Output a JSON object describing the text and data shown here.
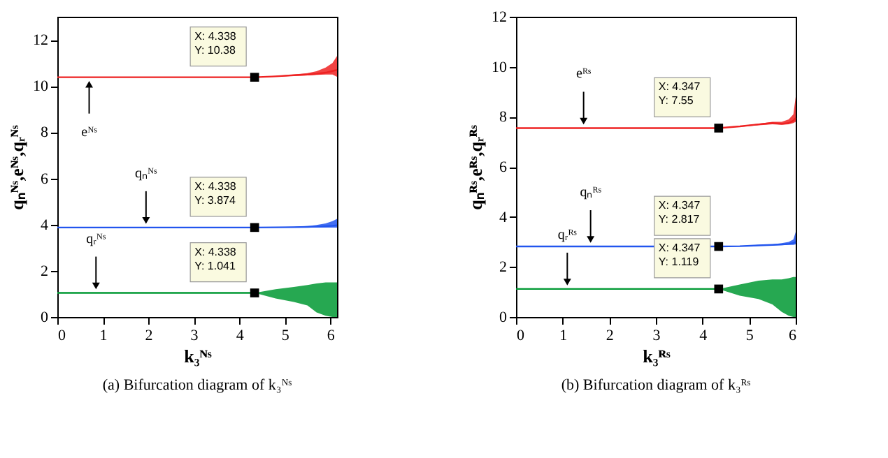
{
  "chart_data": [
    {
      "type": "line",
      "title": "(a) Bifurcation diagram of k₃ᴺˢ",
      "xlabel": "k₃ᴺˢ",
      "ylabel": "qₙᴺˢ,eᴺˢ,qᵣᴺˢ",
      "x": [
        0,
        4.338,
        4.8,
        5.2,
        5.5,
        5.7,
        5.9,
        6.05,
        6.15
      ],
      "series": [
        {
          "color": "#ee2222",
          "values": [
            10.38,
            10.38,
            10.42,
            10.47,
            10.5,
            10.53,
            10.58,
            10.65,
            10.7
          ],
          "lower": [
            10.38,
            10.38,
            10.4,
            10.44,
            10.46,
            10.48,
            10.5,
            10.5,
            10.4
          ],
          "upper": [
            10.38,
            10.38,
            10.44,
            10.5,
            10.56,
            10.64,
            10.8,
            11.0,
            11.3
          ]
        },
        {
          "color": "#2255ee",
          "values": [
            3.874,
            3.874,
            3.88,
            3.89,
            3.9,
            3.91,
            3.93,
            3.95,
            3.97
          ],
          "lower": [
            3.874,
            3.874,
            3.87,
            3.87,
            3.87,
            3.87,
            3.87,
            3.87,
            3.87
          ],
          "upper": [
            3.874,
            3.874,
            3.89,
            3.91,
            3.94,
            3.98,
            4.05,
            4.15,
            4.25
          ]
        },
        {
          "color": "#009933",
          "values": [
            1.041,
            1.041,
            null,
            null,
            null,
            null,
            null,
            null,
            null
          ],
          "lower": [
            1.041,
            1.041,
            0.8,
            0.65,
            0.5,
            0.2,
            0.05,
            0,
            0
          ],
          "upper": [
            1.041,
            1.041,
            1.2,
            1.3,
            1.38,
            1.45,
            1.5,
            1.5,
            1.5
          ]
        }
      ],
      "xlim": [
        0,
        6.15
      ],
      "xticks": [
        0,
        1,
        2,
        3,
        4,
        5,
        6
      ],
      "ylim": [
        0,
        13
      ],
      "yticks": [
        0,
        2,
        4,
        6,
        8,
        10,
        12
      ],
      "grid": false,
      "annotations": [
        {
          "text": "eᴺˢ",
          "x": 0.7,
          "y": 10.38
        },
        {
          "text": "qₙᴺˢ",
          "x": 1.95,
          "y": 3.874
        },
        {
          "text": "qᵣᴺˢ",
          "x": 0.85,
          "y": 1.041
        },
        {
          "text": "X: 4.338\nY: 10.38",
          "x": 4.338,
          "y": 10.38
        },
        {
          "text": "X: 4.338\nY: 3.874",
          "x": 4.338,
          "y": 3.874
        },
        {
          "text": "X: 4.338\nY: 1.041",
          "x": 4.338,
          "y": 1.041
        }
      ]
    },
    {
      "type": "line",
      "title": "(b) Bifurcation diagram of k₃ᴿˢ",
      "xlabel": "k₃ᴿˢ",
      "ylabel": "qₙᴿˢ,eᴿˢ,qᵣᴿˢ",
      "x": [
        0,
        4.347,
        4.8,
        5.2,
        5.5,
        5.7,
        5.85,
        5.95,
        6.0
      ],
      "series": [
        {
          "color": "#ee2222",
          "values": [
            7.55,
            7.55,
            7.62,
            7.7,
            7.75,
            7.72,
            7.75,
            7.85,
            7.95
          ],
          "lower": [
            7.55,
            7.55,
            7.6,
            7.66,
            7.7,
            7.68,
            7.7,
            7.75,
            7.8
          ],
          "upper": [
            7.55,
            7.55,
            7.63,
            7.72,
            7.8,
            7.8,
            7.9,
            8.1,
            8.8
          ]
        },
        {
          "color": "#2255ee",
          "values": [
            2.817,
            2.817,
            2.83,
            2.86,
            2.88,
            2.9,
            2.92,
            2.95,
            3.0
          ],
          "lower": [
            2.817,
            2.817,
            2.82,
            2.85,
            2.86,
            2.87,
            2.88,
            2.88,
            2.9
          ],
          "upper": [
            2.817,
            2.817,
            2.84,
            2.88,
            2.9,
            2.95,
            3.0,
            3.1,
            3.4
          ]
        },
        {
          "color": "#009933",
          "values": [
            1.119,
            1.119,
            null,
            null,
            null,
            null,
            null,
            null,
            null
          ],
          "lower": [
            1.119,
            1.119,
            0.85,
            0.72,
            0.5,
            0.2,
            0.05,
            0,
            0
          ],
          "upper": [
            1.119,
            1.119,
            1.3,
            1.45,
            1.5,
            1.5,
            1.55,
            1.6,
            1.6
          ]
        }
      ],
      "xlim": [
        0,
        6
      ],
      "xticks": [
        0,
        1,
        2,
        3,
        4,
        5,
        6
      ],
      "ylim": [
        0,
        12
      ],
      "yticks": [
        0,
        2,
        4,
        6,
        8,
        10,
        12
      ],
      "grid": false,
      "annotations": [
        {
          "text": "eᴿˢ",
          "x": 1.45,
          "y": 7.55
        },
        {
          "text": "qₙᴿˢ",
          "x": 1.6,
          "y": 2.817
        },
        {
          "text": "qᵣᴿˢ",
          "x": 1.1,
          "y": 1.119
        },
        {
          "text": "X: 4.347\nY: 7.55",
          "x": 4.347,
          "y": 7.55
        },
        {
          "text": "X: 4.347\nY: 2.817",
          "x": 4.347,
          "y": 2.817
        },
        {
          "text": "X: 4.347\nY: 1.119",
          "x": 4.347,
          "y": 1.119
        }
      ]
    }
  ]
}
